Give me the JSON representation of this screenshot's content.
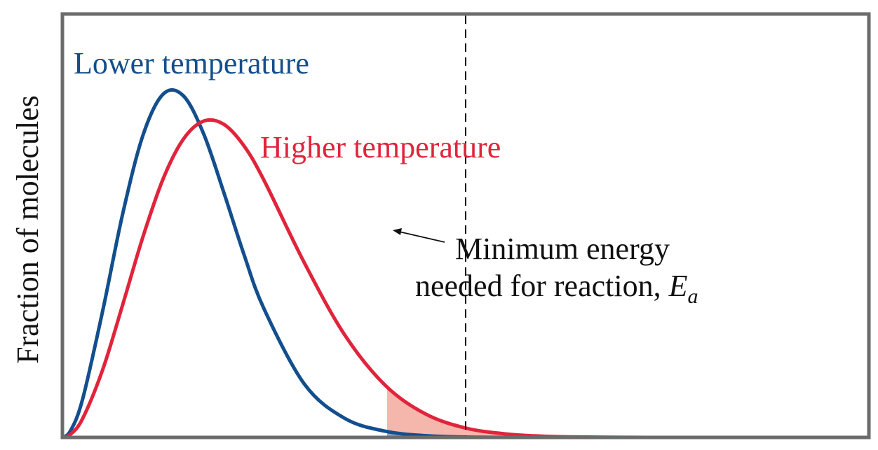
{
  "chart_data": {
    "type": "line",
    "title": "",
    "xlabel": "",
    "ylabel": "Fraction of molecules",
    "xlim": [
      0,
      10
    ],
    "ylim": [
      0,
      1
    ],
    "grid": false,
    "series": [
      {
        "name": "Lower temperature",
        "color": "#134e8d",
        "tail_fill": "#90a6cd",
        "x": [
          0,
          0.1,
          0.25,
          0.5,
          0.75,
          1.0,
          1.25,
          1.5,
          1.75,
          2.0,
          2.25,
          2.5,
          3.0,
          3.5,
          4.0,
          4.5,
          5.0,
          5.5,
          6.0,
          6.5,
          7.0,
          7.5,
          8.0,
          9.0,
          10.0
        ],
        "values": [
          0,
          0.019,
          0.11,
          0.366,
          0.648,
          0.873,
          0.991,
          0.986,
          0.877,
          0.708,
          0.529,
          0.371,
          0.154,
          0.055,
          0.018,
          0.005,
          0.001,
          0.0003,
          0.0001,
          0,
          0,
          0,
          0,
          0,
          0
        ]
      },
      {
        "name": "Higher temperature",
        "color": "#e0243b",
        "tail_fill": "#f5b6ac",
        "x": [
          0,
          0.1,
          0.25,
          0.5,
          0.75,
          1.0,
          1.25,
          1.5,
          1.75,
          2.0,
          2.25,
          2.5,
          3.0,
          3.5,
          4.0,
          4.5,
          5.0,
          5.5,
          6.0,
          6.5,
          7.0,
          7.5,
          8.0,
          9.0,
          10.0
        ],
        "values": [
          0,
          0.009,
          0.054,
          0.196,
          0.385,
          0.58,
          0.747,
          0.861,
          0.913,
          0.904,
          0.842,
          0.742,
          0.504,
          0.296,
          0.151,
          0.068,
          0.027,
          0.01,
          0.003,
          0.001,
          0.0002,
          0.0001,
          0,
          0,
          0
        ]
      }
    ],
    "threshold": {
      "x": 5.0,
      "label_line1": "Minimum energy",
      "label_line2_prefix": "needed for reaction, ",
      "label_symbol": "E",
      "label_subscript": "a"
    }
  }
}
